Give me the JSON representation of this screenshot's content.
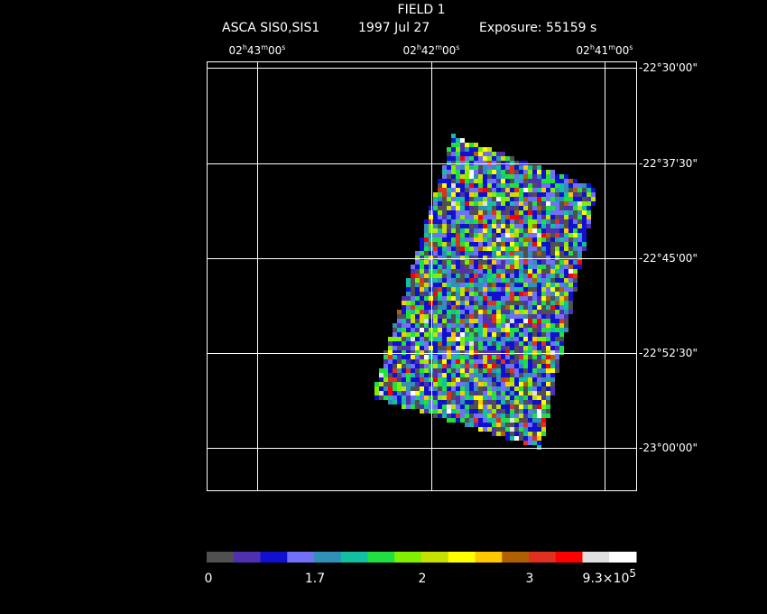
{
  "header": {
    "title": "FIELD 1",
    "instrument": "ASCA SIS0,SIS1",
    "date": "1997 Jul 27",
    "exposure": "Exposure: 55159 s"
  },
  "ra_labels": [
    [
      "02",
      "h",
      "43",
      "m",
      "00",
      "s"
    ],
    [
      "02",
      "h",
      "42",
      "m",
      "00",
      "s"
    ],
    [
      "02",
      "h",
      "41",
      "m",
      "00",
      "s"
    ]
  ],
  "dec_labels": [
    "-22°30'00\"",
    "-22°37'30\"",
    "-22°45'00\"",
    "-22°52'30\"",
    "-23°00'00\""
  ],
  "colorbar": {
    "labels": [
      "0",
      "1.7",
      "2",
      "3"
    ],
    "max_label": [
      "9.3×10",
      "5"
    ],
    "colors": [
      "#505050",
      "#5030b0",
      "#1010d0",
      "#7070f8",
      "#3090b8",
      "#10c0a0",
      "#20e040",
      "#80f000",
      "#c8e000",
      "#ffff00",
      "#ffc800",
      "#b06000",
      "#e03020",
      "#ff0000",
      "#e0e0e0",
      "#ffffff"
    ]
  }
}
